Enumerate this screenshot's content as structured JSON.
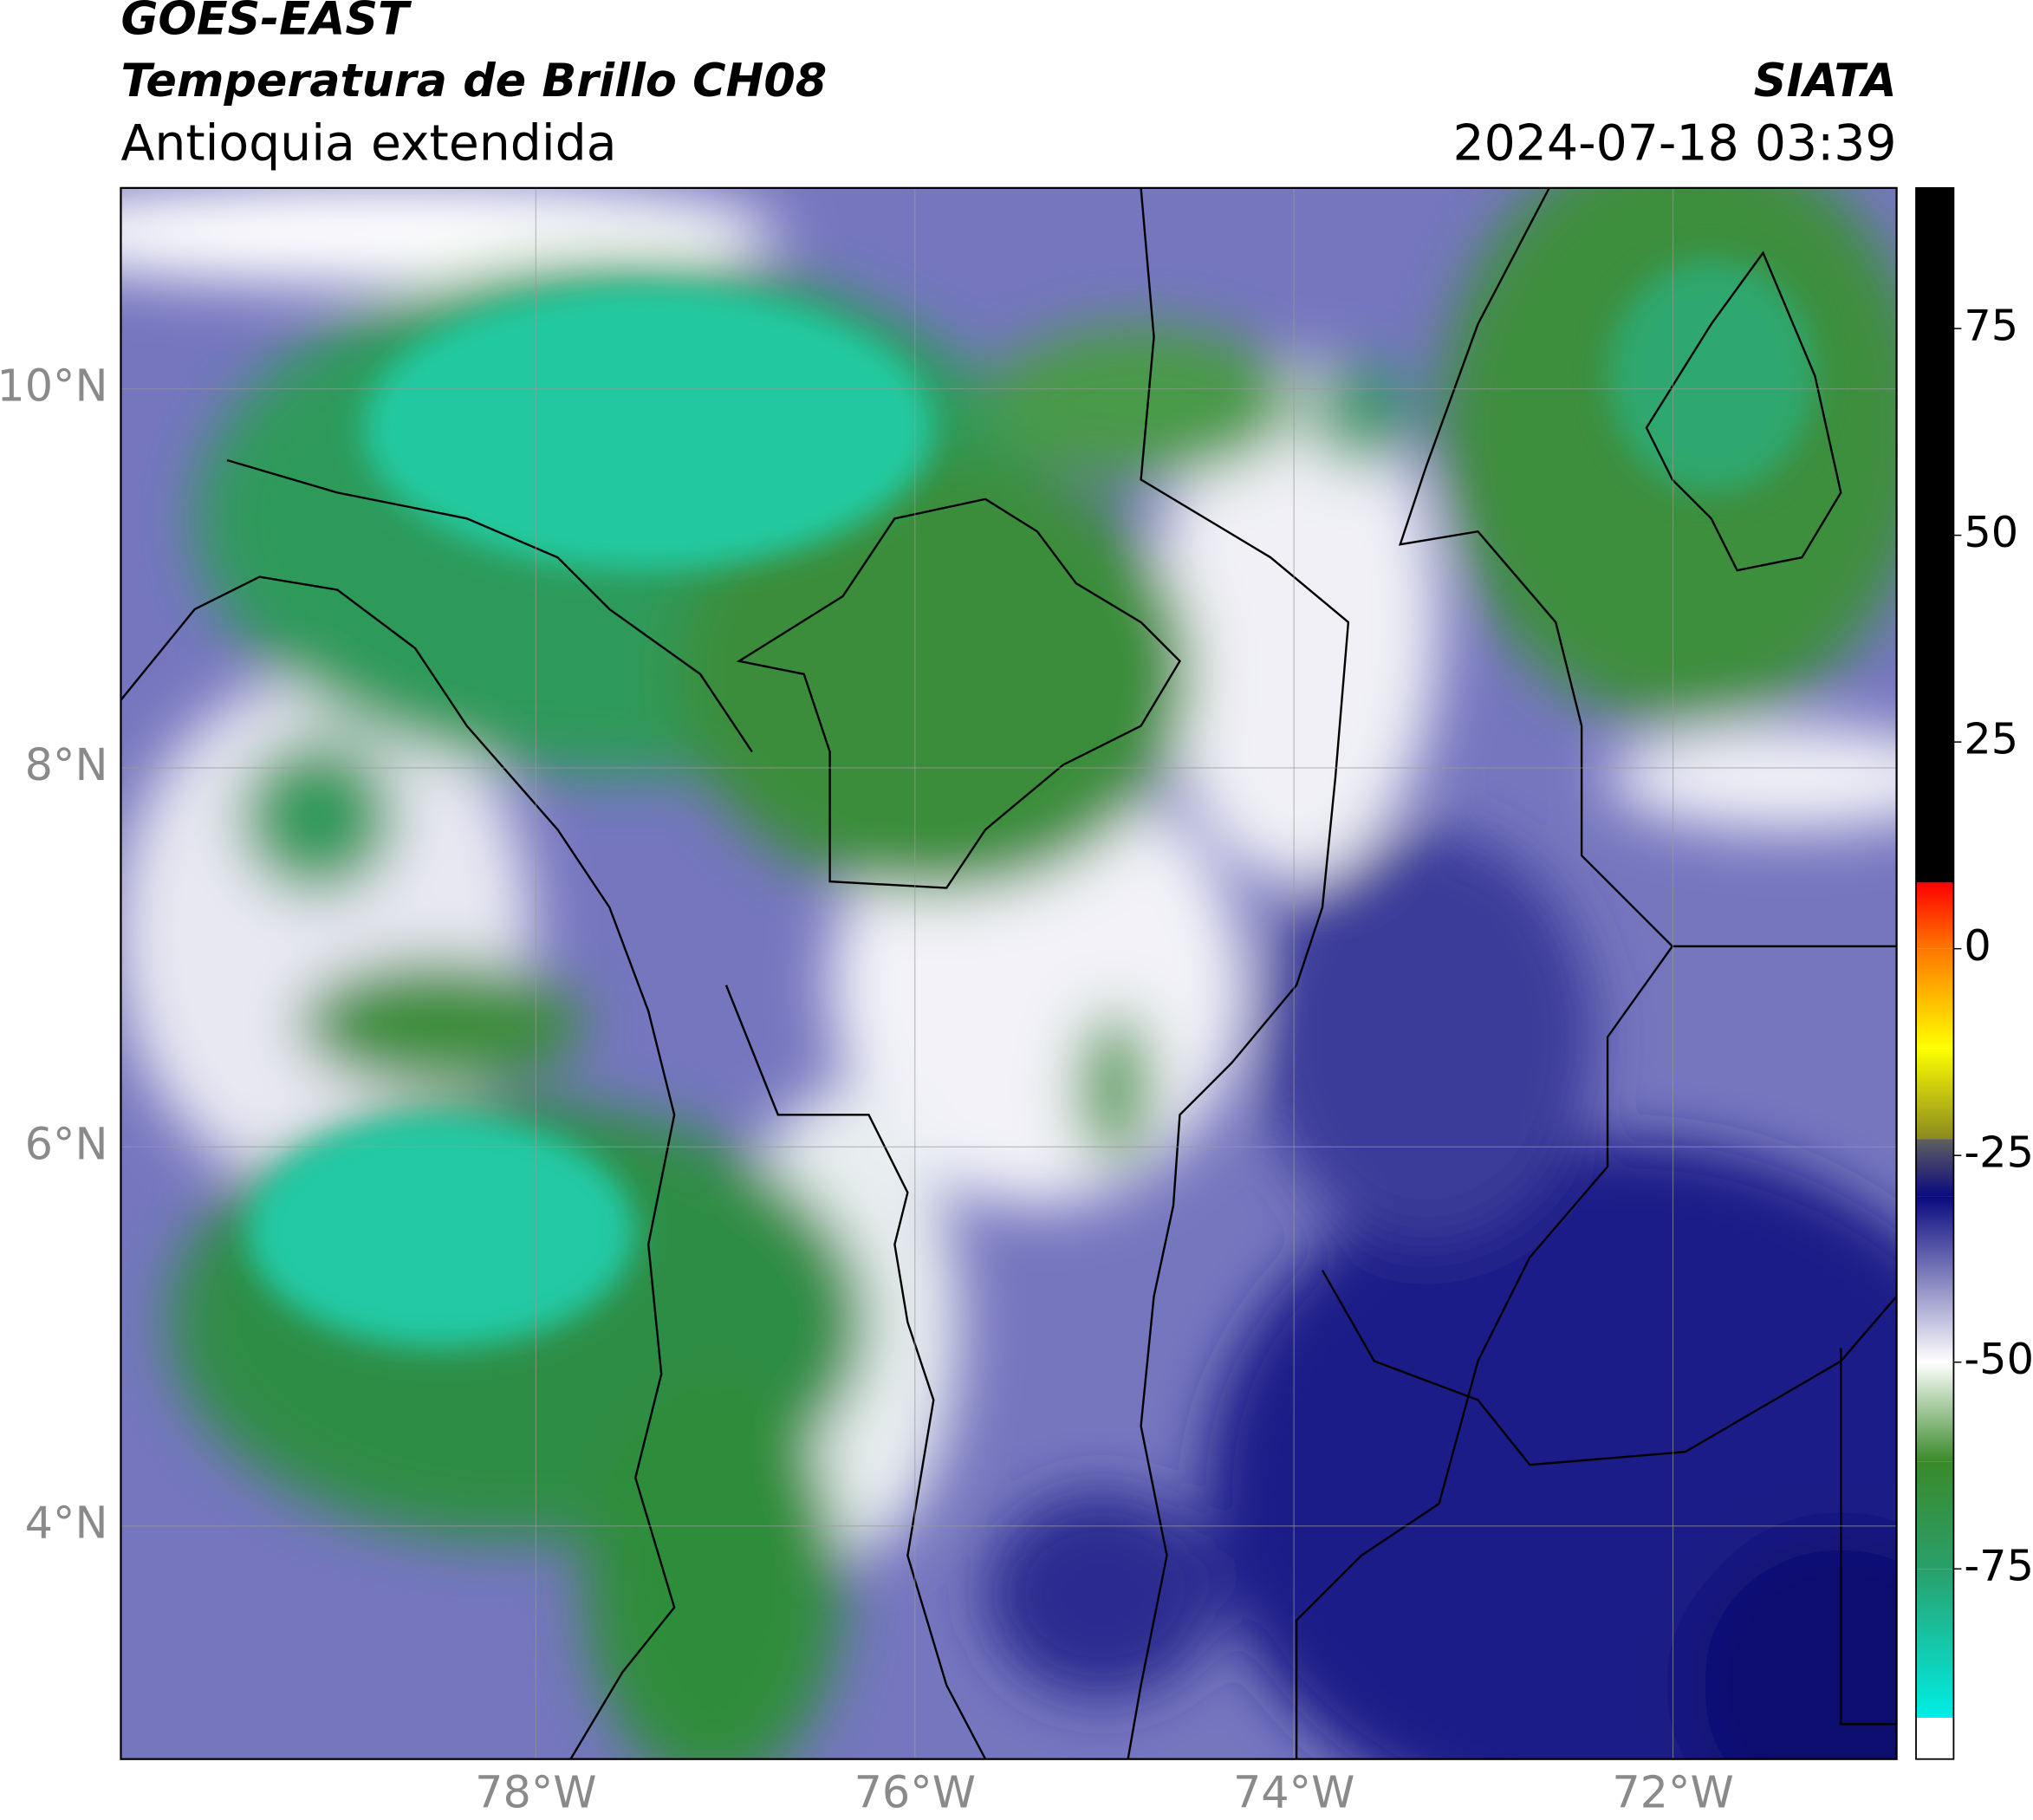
{
  "chart_data": {
    "type": "map",
    "title": "GOES-EAST",
    "subtitle": "Temperatura de Brillo CH08",
    "region": "Antioquia extendida",
    "source": "SIATA",
    "timestamp": "2024-07-18 03:39",
    "xlim": [
      -80.19,
      -70.82
    ],
    "ylim": [
      2.77,
      11.06
    ],
    "xticks": [
      {
        "value": -78,
        "label": "78°W"
      },
      {
        "value": -76,
        "label": "76°W"
      },
      {
        "value": -74,
        "label": "74°W"
      },
      {
        "value": -72,
        "label": "72°W"
      }
    ],
    "yticks": [
      {
        "value": 10,
        "label": "10°N"
      },
      {
        "value": 8,
        "label": "8°N"
      },
      {
        "value": 6,
        "label": "6°N"
      },
      {
        "value": 4,
        "label": "4°N"
      }
    ],
    "grid": true,
    "colorbar": {
      "lim": [
        -98,
        92
      ],
      "ticks": [
        75,
        50,
        25,
        0,
        -25,
        -50,
        -75
      ],
      "segments": [
        {
          "range": [
            -98,
            -93
          ],
          "colors": [
            "#ffffff",
            "#ffffff"
          ]
        },
        {
          "range": [
            -93,
            -75
          ],
          "colors": [
            "#00eee6",
            "#2a9f6a"
          ]
        },
        {
          "range": [
            -75,
            -62
          ],
          "colors": [
            "#2a9f6a",
            "#3a8a2a"
          ]
        },
        {
          "range": [
            -62,
            -50
          ],
          "colors": [
            "#3a8a2a",
            "#ffffff"
          ]
        },
        {
          "range": [
            -50,
            -30
          ],
          "colors": [
            "#ffffff",
            "#0a0a80"
          ]
        },
        {
          "range": [
            -30,
            -23
          ],
          "colors": [
            "#0a0a80",
            "#606060"
          ]
        },
        {
          "range": [
            -23,
            -12
          ],
          "colors": [
            "#8a8a20",
            "#ffff00"
          ]
        },
        {
          "range": [
            -12,
            0
          ],
          "colors": [
            "#ffff00",
            "#ff7700"
          ]
        },
        {
          "range": [
            0,
            8
          ],
          "colors": [
            "#ff7700",
            "#ff0000"
          ]
        },
        {
          "range": [
            8,
            92
          ],
          "colors": [
            "#000000",
            "#000000"
          ]
        }
      ]
    }
  }
}
